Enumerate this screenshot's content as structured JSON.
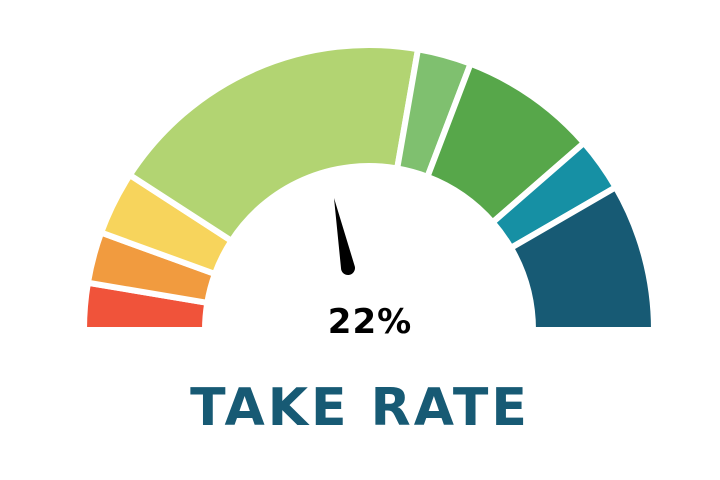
{
  "chart_data": {
    "type": "gauge",
    "title": "TAKE RATE",
    "value_label": "22%",
    "value": 22,
    "segments": [
      {
        "span_percent": 5.3,
        "color": "#F0533A"
      },
      {
        "span_percent": 5.8,
        "color": "#F19B3F"
      },
      {
        "span_percent": 7.2,
        "color": "#F7D45C"
      },
      {
        "span_percent": 37.2,
        "color": "#B2D472"
      },
      {
        "span_percent": 6.1,
        "color": "#7FC06F"
      },
      {
        "span_percent": 15.6,
        "color": "#57A74A"
      },
      {
        "span_percent": 6.1,
        "color": "#1690A4"
      },
      {
        "span_percent": 16.7,
        "color": "#175A74"
      }
    ],
    "needle_color": "#000000",
    "title_color": "#175A74"
  }
}
